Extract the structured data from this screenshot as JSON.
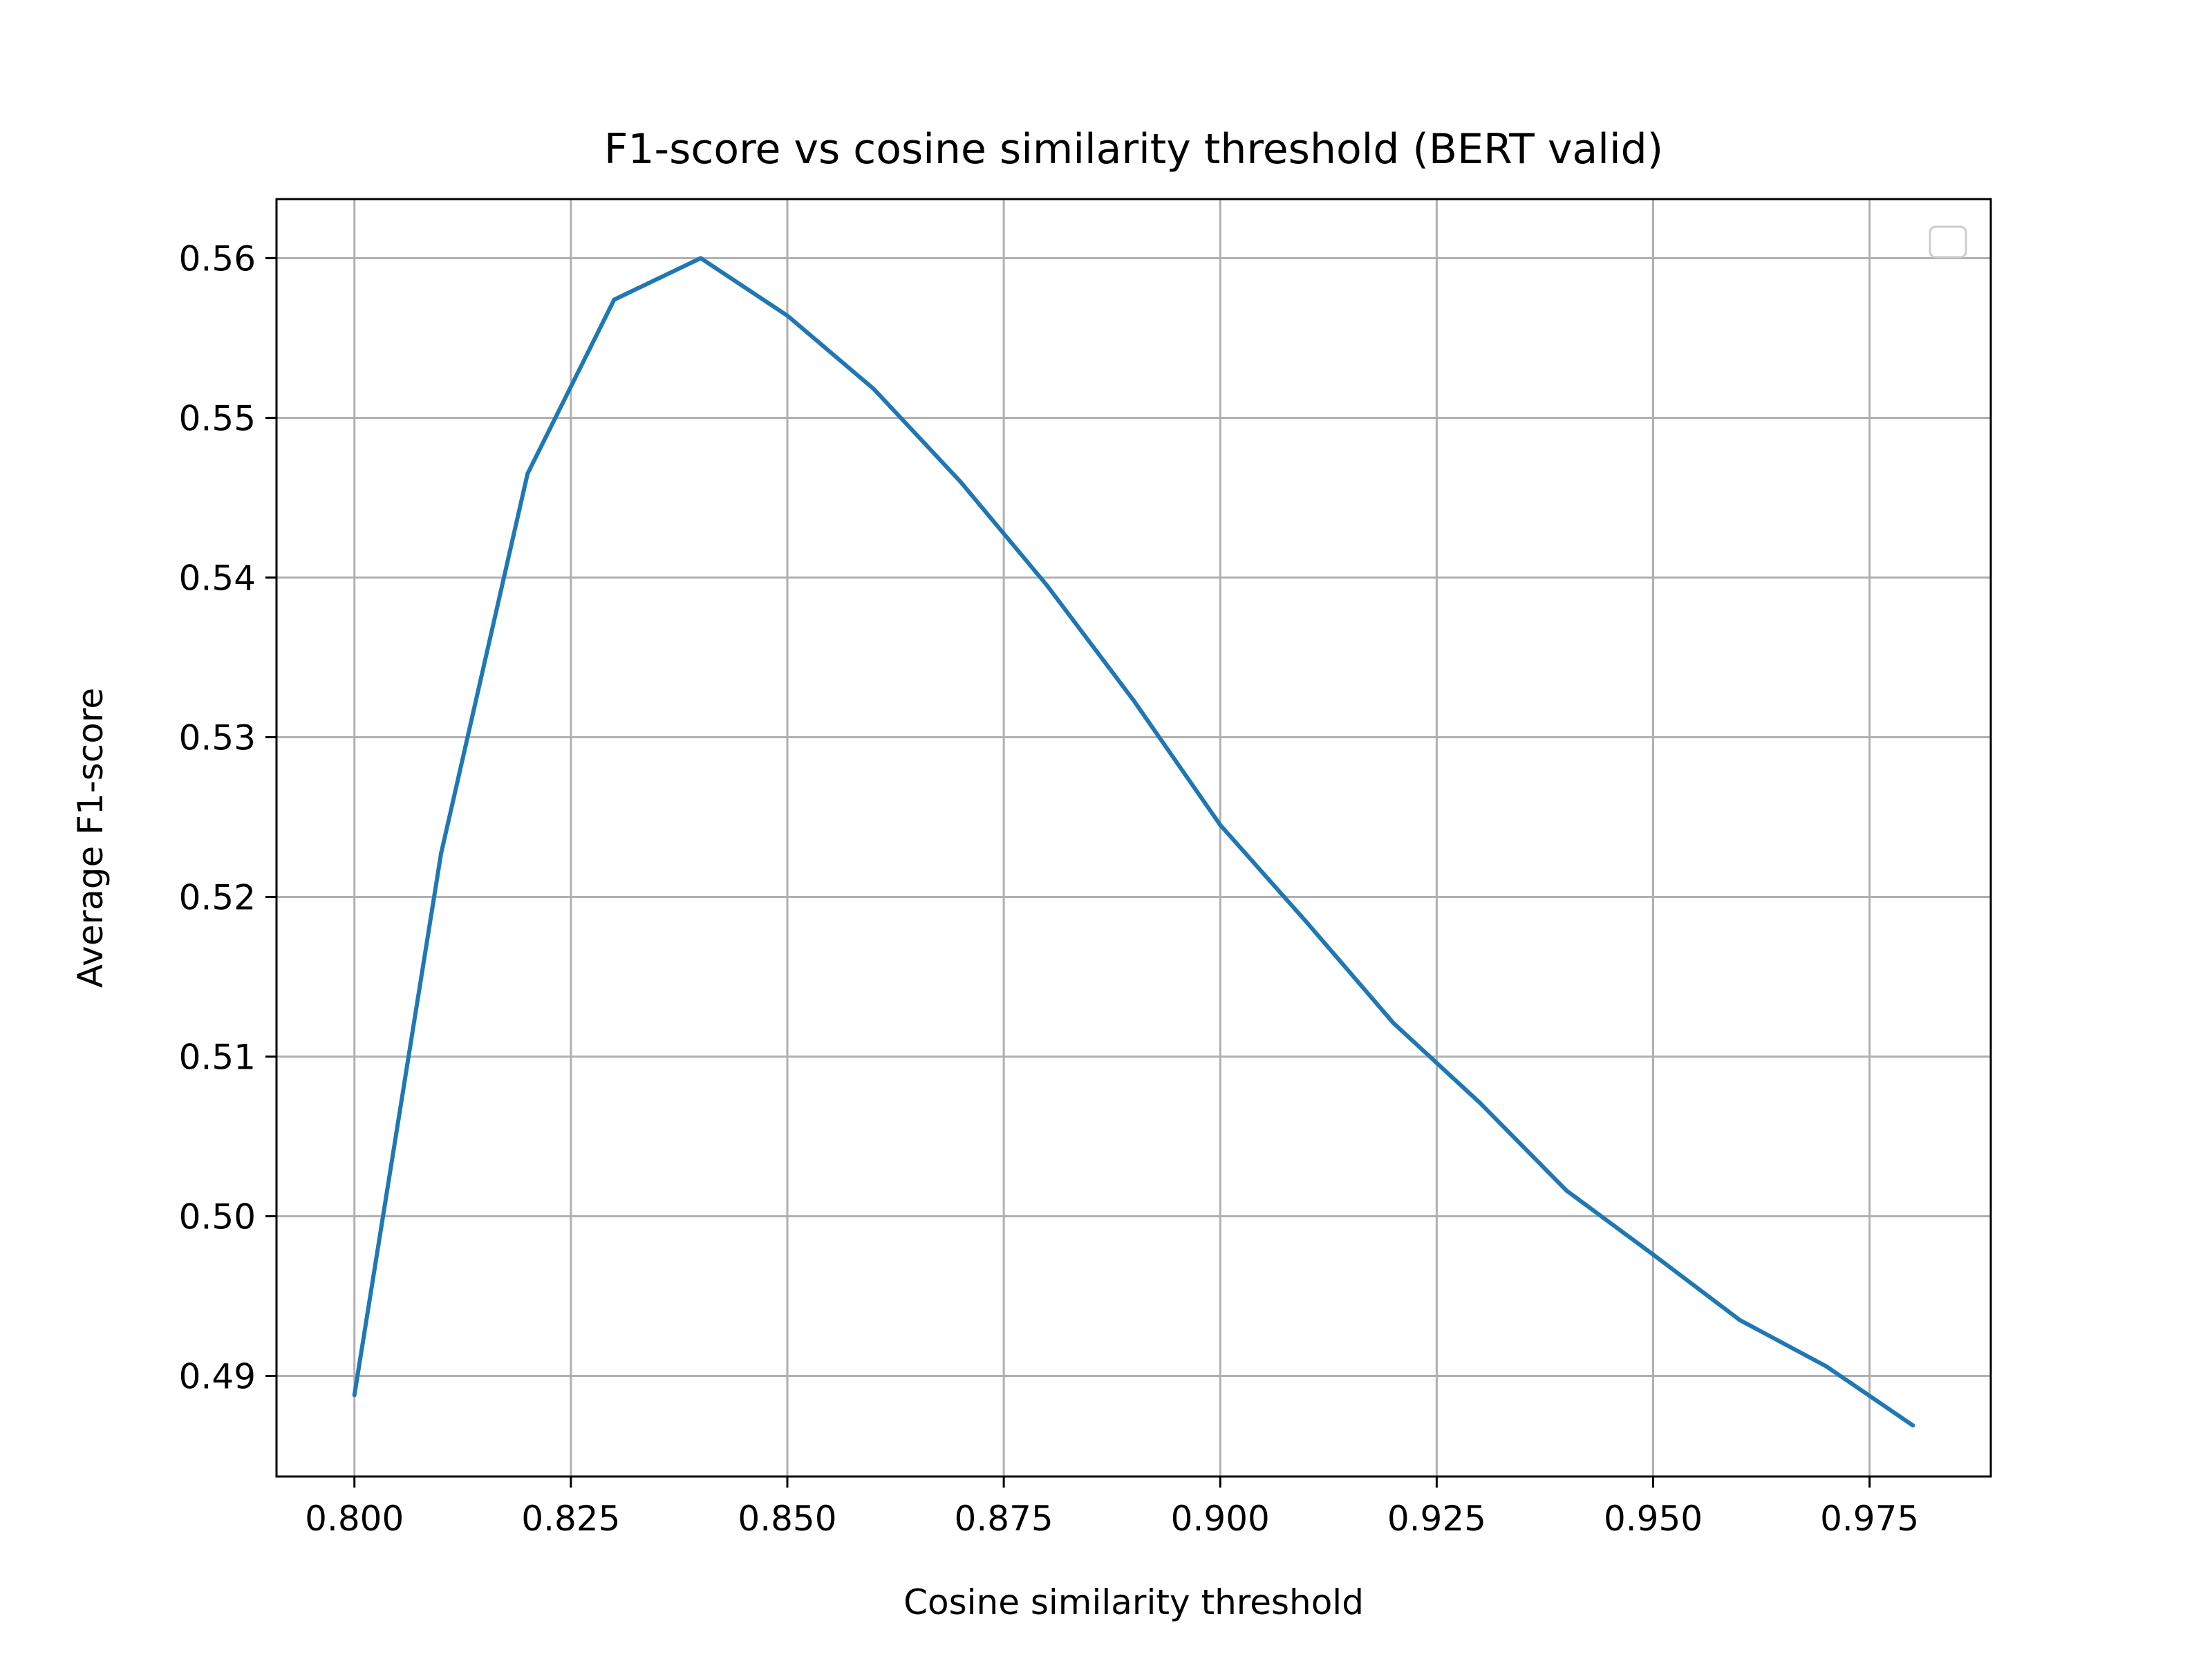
{
  "chart_data": {
    "type": "line",
    "title": "F1-score vs cosine similarity threshold (BERT valid)",
    "xlabel": "Cosine similarity threshold",
    "ylabel": "Average F1-score",
    "xlim": [
      0.791,
      0.989
    ],
    "ylim": [
      0.4837,
      0.5637
    ],
    "xticks": [
      0.8,
      0.825,
      0.85,
      0.875,
      0.9,
      0.925,
      0.95,
      0.975
    ],
    "xtick_labels": [
      "0.800",
      "0.825",
      "0.850",
      "0.875",
      "0.900",
      "0.925",
      "0.950",
      "0.975"
    ],
    "yticks": [
      0.49,
      0.5,
      0.51,
      0.52,
      0.53,
      0.54,
      0.55,
      0.56
    ],
    "ytick_labels": [
      "0.49",
      "0.50",
      "0.51",
      "0.52",
      "0.53",
      "0.54",
      "0.55",
      "0.56"
    ],
    "grid": true,
    "legend": "top-right (empty)",
    "series": [
      {
        "color": "#1f77b4",
        "x": [
          0.8,
          0.81,
          0.82,
          0.83,
          0.84,
          0.85,
          0.86,
          0.87,
          0.88,
          0.89,
          0.9,
          0.91,
          0.92,
          0.93,
          0.94,
          0.95,
          0.96,
          0.97,
          0.98
        ],
        "y": [
          0.4888,
          0.5227,
          0.5465,
          0.5574,
          0.56,
          0.5564,
          0.5518,
          0.546,
          0.5395,
          0.5323,
          0.5245,
          0.5184,
          0.5121,
          0.5071,
          0.5016,
          0.4976,
          0.4935,
          0.4906,
          0.4869
        ]
      }
    ]
  }
}
